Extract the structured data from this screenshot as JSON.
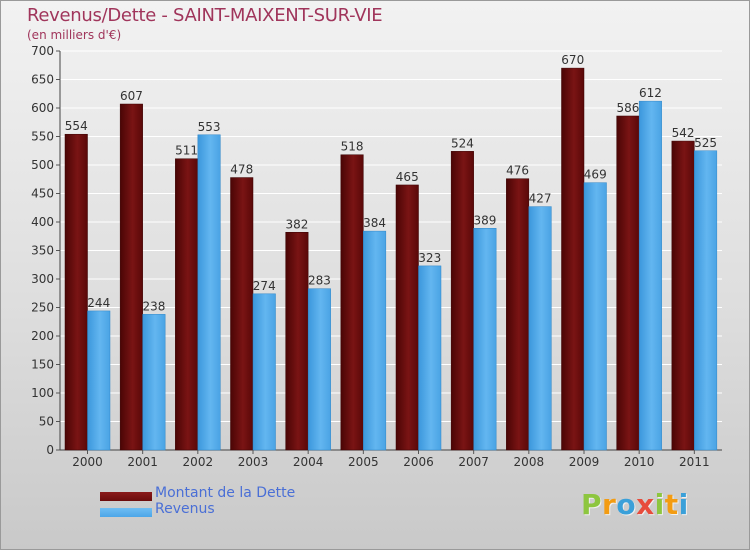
{
  "chart_data": {
    "type": "bar",
    "title": "Revenus/Dette - SAINT-MAIXENT-SUR-VIE",
    "subtitle": "(en milliers d'€)",
    "categories": [
      "2000",
      "2001",
      "2002",
      "2003",
      "2004",
      "2005",
      "2006",
      "2007",
      "2008",
      "2009",
      "2010",
      "2011"
    ],
    "series": [
      {
        "name": "Montant de la Dette",
        "color": "#6b0b0b",
        "values": [
          554,
          607,
          511,
          478,
          382,
          518,
          465,
          524,
          476,
          670,
          586,
          542
        ]
      },
      {
        "name": "Revenus",
        "color": "#4ca6e8",
        "values": [
          244,
          238,
          553,
          274,
          283,
          384,
          323,
          389,
          427,
          469,
          612,
          525
        ]
      }
    ],
    "ylim": [
      0,
      700
    ],
    "yticks": [
      0,
      50,
      100,
      150,
      200,
      250,
      300,
      350,
      400,
      450,
      500,
      550,
      600,
      650,
      700
    ],
    "grid": true,
    "legend_position": "bottom-left"
  },
  "branding": {
    "logo_letters": [
      "P",
      "r",
      "o",
      "x",
      "i",
      "t",
      "i"
    ],
    "logo_colors": [
      "#8dc63f",
      "#f39c12",
      "#3aa0d9",
      "#e74c3c",
      "#8dc63f",
      "#f39c12",
      "#3aa0d9"
    ]
  }
}
